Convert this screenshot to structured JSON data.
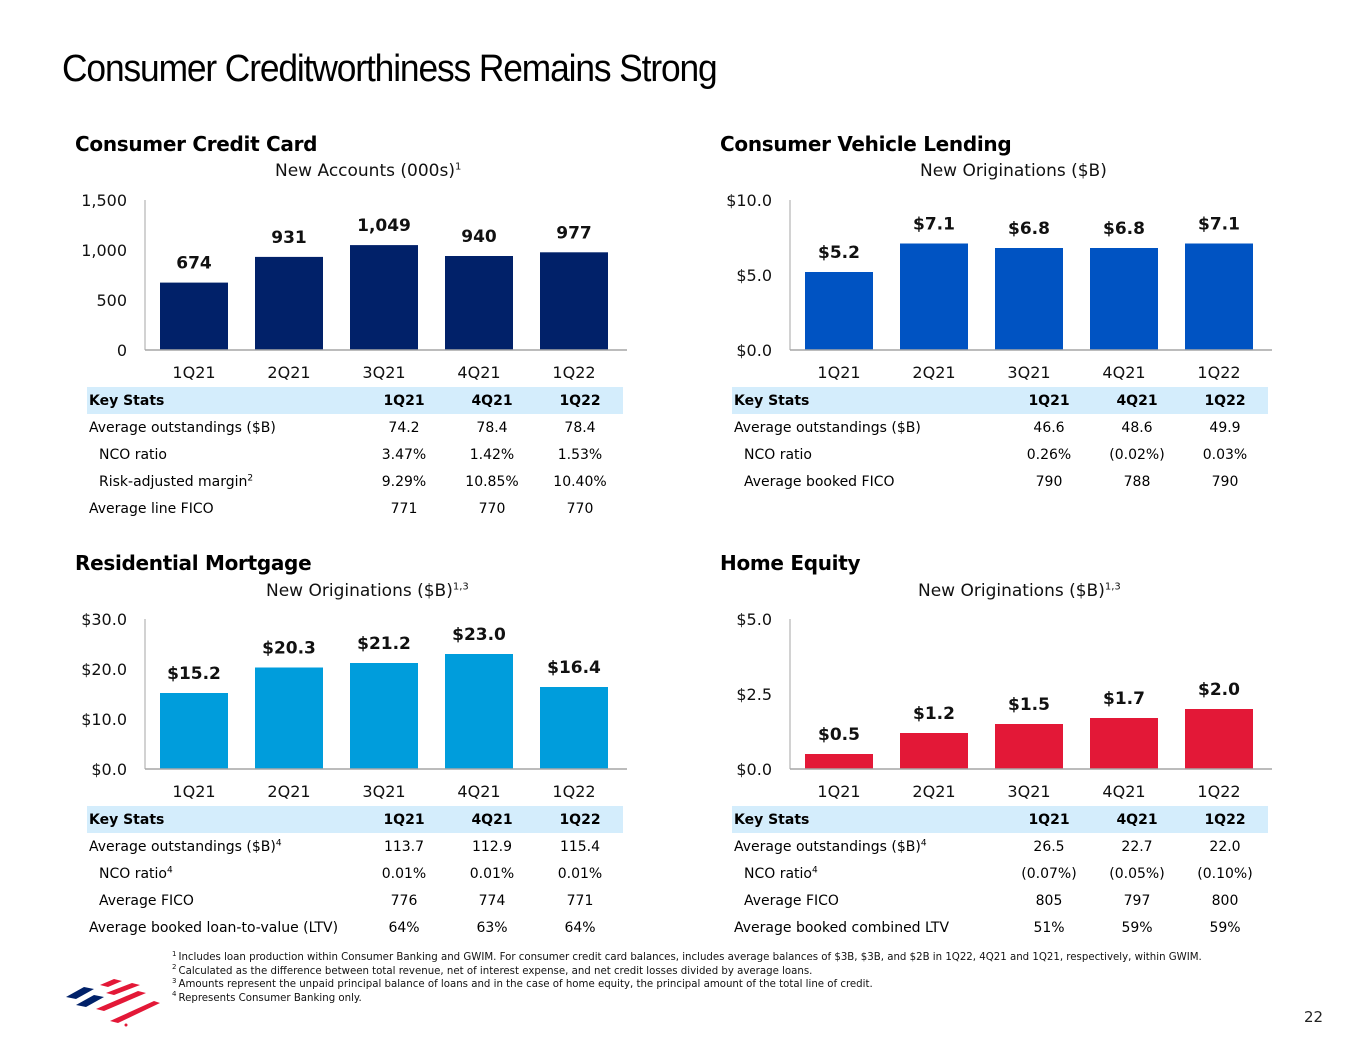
{
  "page": {
    "title": "Consumer Creditworthiness Remains Strong",
    "page_number": "22"
  },
  "colors": {
    "credit_card": "#012169",
    "vehicle": "#0053c2",
    "mortgage": "#009ddc",
    "home_equity": "#e31837",
    "stats_header_bg": "#d4edfc"
  },
  "panels": {
    "credit_card": {
      "title": "Consumer Credit Card",
      "stats": {
        "headers": [
          "Key Stats",
          "1Q21",
          "4Q21",
          "1Q22"
        ],
        "rows": [
          {
            "label": "Average outstandings ($B)",
            "sup": "",
            "values": [
              "74.2",
              "78.4",
              "78.4"
            ],
            "indent": false
          },
          {
            "label": "NCO ratio",
            "sup": "",
            "values": [
              "3.47%",
              "1.42%",
              "1.53%"
            ],
            "indent": true
          },
          {
            "label": "Risk-adjusted margin",
            "sup": "2",
            "values": [
              "9.29%",
              "10.85%",
              "10.40%"
            ],
            "indent": true
          },
          {
            "label": "Average line FICO",
            "sup": "",
            "values": [
              "771",
              "770",
              "770"
            ],
            "indent": false
          }
        ]
      }
    },
    "vehicle": {
      "title": "Consumer Vehicle Lending",
      "stats": {
        "headers": [
          "Key Stats",
          "1Q21",
          "4Q21",
          "1Q22"
        ],
        "rows": [
          {
            "label": "Average outstandings ($B)",
            "sup": "",
            "values": [
              "46.6",
              "48.6",
              "49.9"
            ],
            "indent": false
          },
          {
            "label": "NCO ratio",
            "sup": "",
            "values": [
              "0.26%",
              "(0.02%)",
              "0.03%"
            ],
            "indent": true
          },
          {
            "label": "Average booked FICO",
            "sup": "",
            "values": [
              "790",
              "788",
              "790"
            ],
            "indent": true
          }
        ]
      }
    },
    "mortgage": {
      "title": "Residential Mortgage",
      "stats": {
        "headers": [
          "Key Stats",
          "1Q21",
          "4Q21",
          "1Q22"
        ],
        "rows": [
          {
            "label": "Average outstandings ($B)",
            "sup": "4",
            "values": [
              "113.7",
              "112.9",
              "115.4"
            ],
            "indent": false
          },
          {
            "label": "NCO ratio",
            "sup": "4",
            "values": [
              "0.01%",
              "0.01%",
              "0.01%"
            ],
            "indent": true
          },
          {
            "label": "Average FICO",
            "sup": "",
            "values": [
              "776",
              "774",
              "771"
            ],
            "indent": true
          },
          {
            "label": "Average booked loan-to-value (LTV)",
            "sup": "",
            "values": [
              "64%",
              "63%",
              "64%"
            ],
            "indent": false
          }
        ]
      }
    },
    "home_equity": {
      "title": "Home Equity",
      "stats": {
        "headers": [
          "Key Stats",
          "1Q21",
          "4Q21",
          "1Q22"
        ],
        "rows": [
          {
            "label": "Average outstandings ($B)",
            "sup": "4",
            "values": [
              "26.5",
              "22.7",
              "22.0"
            ],
            "indent": false
          },
          {
            "label": "NCO ratio",
            "sup": "4",
            "values": [
              "(0.07%)",
              "(0.05%)",
              "(0.10%)"
            ],
            "indent": true
          },
          {
            "label": "Average FICO",
            "sup": "",
            "values": [
              "805",
              "797",
              "800"
            ],
            "indent": true
          },
          {
            "label": "Average booked combined LTV",
            "sup": "",
            "values": [
              "51%",
              "59%",
              "59%"
            ],
            "indent": false
          }
        ]
      }
    }
  },
  "chart_data": [
    {
      "id": "credit_card",
      "type": "bar",
      "title": "New Accounts (000s)",
      "title_sup": "1",
      "categories": [
        "1Q21",
        "2Q21",
        "3Q21",
        "4Q21",
        "1Q22"
      ],
      "values": [
        674,
        931,
        1049,
        940,
        977
      ],
      "data_labels": [
        "674",
        "931",
        "1,049",
        "940",
        "977"
      ],
      "ylim": [
        0,
        1500
      ],
      "yticks": [
        0,
        500,
        1000,
        1500
      ],
      "ytick_labels": [
        "0",
        "500",
        "1,000",
        "1,500"
      ],
      "xlabel": "",
      "ylabel": "",
      "grid": false,
      "legend": "none",
      "color": "#012169"
    },
    {
      "id": "vehicle",
      "type": "bar",
      "title": "New Originations ($B)",
      "title_sup": "",
      "categories": [
        "1Q21",
        "2Q21",
        "3Q21",
        "4Q21",
        "1Q22"
      ],
      "values": [
        5.2,
        7.1,
        6.8,
        6.8,
        7.1
      ],
      "data_labels": [
        "$5.2",
        "$7.1",
        "$6.8",
        "$6.8",
        "$7.1"
      ],
      "ylim": [
        0,
        10
      ],
      "yticks": [
        0,
        5,
        10
      ],
      "ytick_labels": [
        "$0.0",
        "$5.0",
        "$10.0"
      ],
      "xlabel": "",
      "ylabel": "",
      "grid": false,
      "legend": "none",
      "color": "#0053c2"
    },
    {
      "id": "mortgage",
      "type": "bar",
      "title": "New Originations ($B)",
      "title_sup": "1,3",
      "categories": [
        "1Q21",
        "2Q21",
        "3Q21",
        "4Q21",
        "1Q22"
      ],
      "values": [
        15.2,
        20.3,
        21.2,
        23.0,
        16.4
      ],
      "data_labels": [
        "$15.2",
        "$20.3",
        "$21.2",
        "$23.0",
        "$16.4"
      ],
      "ylim": [
        0,
        30
      ],
      "yticks": [
        0,
        10,
        20,
        30
      ],
      "ytick_labels": [
        "$0.0",
        "$10.0",
        "$20.0",
        "$30.0"
      ],
      "xlabel": "",
      "ylabel": "",
      "grid": false,
      "legend": "none",
      "color": "#009ddc"
    },
    {
      "id": "home_equity",
      "type": "bar",
      "title": "New Originations ($B)",
      "title_sup": "1,3",
      "categories": [
        "1Q21",
        "2Q21",
        "3Q21",
        "4Q21",
        "1Q22"
      ],
      "values": [
        0.5,
        1.2,
        1.5,
        1.7,
        2.0
      ],
      "data_labels": [
        "$0.5",
        "$1.2",
        "$1.5",
        "$1.7",
        "$2.0"
      ],
      "ylim": [
        0,
        5
      ],
      "yticks": [
        0,
        2.5,
        5
      ],
      "ytick_labels": [
        "$0.0",
        "$2.5",
        "$5.0"
      ],
      "xlabel": "",
      "ylabel": "",
      "grid": false,
      "legend": "none",
      "color": "#e31837"
    }
  ],
  "footnotes": [
    {
      "num": "1",
      "text": "Includes loan production within Consumer Banking and GWIM. For consumer credit card balances, includes average balances of $3B, $3B, and $2B in 1Q22, 4Q21 and 1Q21, respectively, within GWIM."
    },
    {
      "num": "2",
      "text": "Calculated as the difference between total revenue, net of interest expense, and net credit losses divided by average loans."
    },
    {
      "num": "3",
      "text": "Amounts represent the unpaid principal balance of loans and in the case of home equity, the principal amount of the total line of credit."
    },
    {
      "num": "4",
      "text": "Represents Consumer Banking only."
    }
  ],
  "logo": {
    "name": "Bank of America flag logo",
    "icon": "flag-logo-icon"
  }
}
